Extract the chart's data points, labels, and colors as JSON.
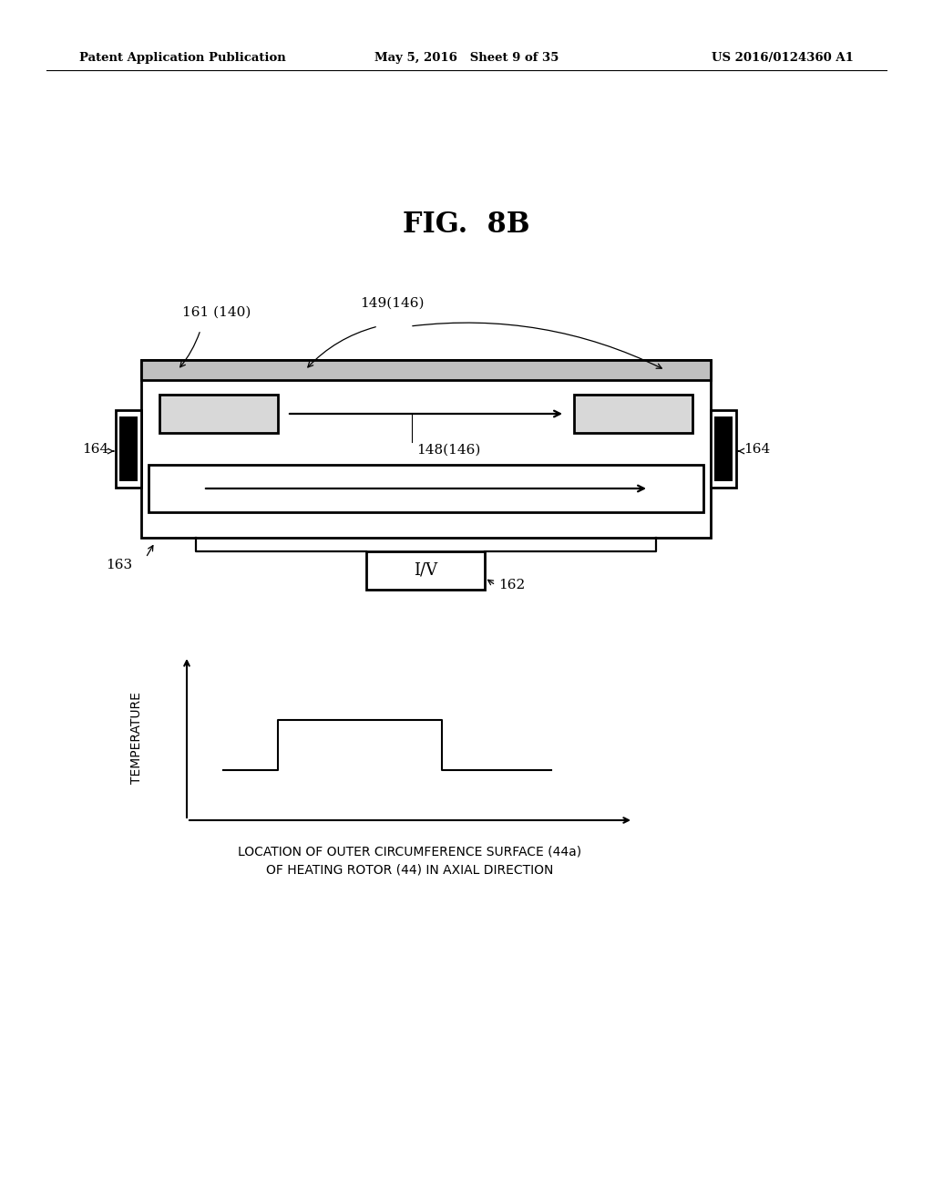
{
  "bg_color": "#ffffff",
  "header_left": "Patent Application Publication",
  "header_mid": "May 5, 2016   Sheet 9 of 35",
  "header_right": "US 2016/0124360 A1",
  "fig_title": "FIG.  8B",
  "xlabel_line1": "LOCATION OF OUTER CIRCUMFERENCE SURFACE (44a)",
  "xlabel_line2": "OF HEATING ROTOR (44) IN AXIAL DIRECTION",
  "ylabel": "TEMPERATURE",
  "label_161": "161 (140)",
  "label_149": "149(146)",
  "label_148": "148(146)",
  "label_164": "164",
  "label_163": "163",
  "label_162": "162",
  "label_iv": "I/V"
}
